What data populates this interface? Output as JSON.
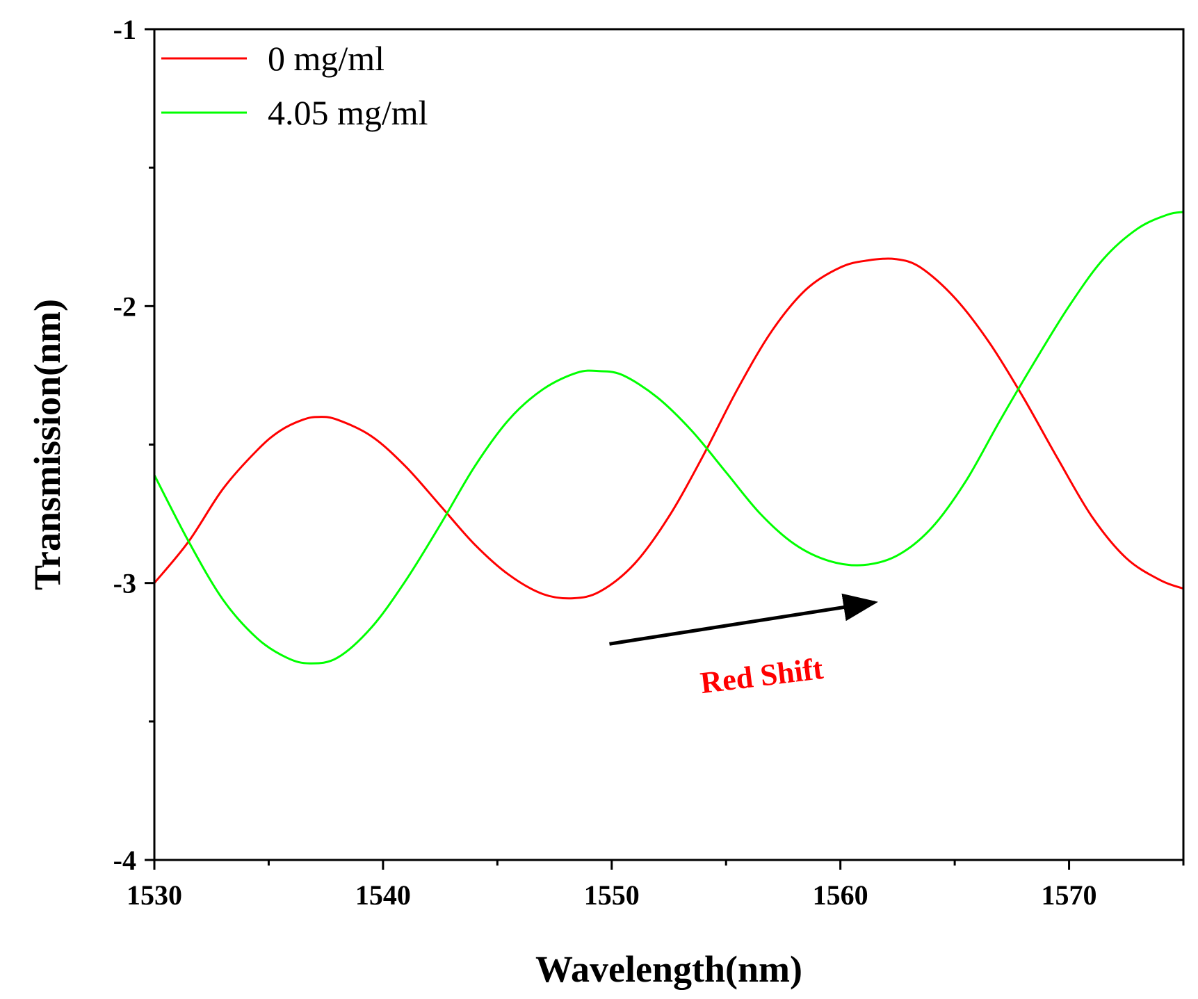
{
  "chart_data": {
    "type": "line",
    "title": "",
    "xlabel": "Wavelength(nm)",
    "ylabel": "Transmission(nm)",
    "xlim": [
      1530,
      1575
    ],
    "ylim": [
      -4,
      -1
    ],
    "x_ticks": [
      1530,
      1540,
      1550,
      1560,
      1570
    ],
    "x_tick_labels": [
      "1530",
      "1540",
      "1550",
      "1560",
      "1570"
    ],
    "x_minor_step": 5,
    "y_ticks": [
      -4,
      -3,
      -2,
      -1
    ],
    "y_tick_labels": [
      "-4",
      "-3",
      "-2",
      "-1"
    ],
    "y_minor_step": 0.5,
    "grid": false,
    "legend_position": "top-left",
    "series": [
      {
        "name": "0 mg/ml",
        "color": "#ff0000",
        "x": [
          1530,
          1531.5,
          1533,
          1534.5,
          1535.5,
          1536.5,
          1537.2,
          1538,
          1539.5,
          1541,
          1542.5,
          1544,
          1545.5,
          1547,
          1548.3,
          1549.5,
          1551,
          1552.5,
          1554,
          1555.5,
          1557,
          1558.5,
          1560,
          1561.2,
          1562.4,
          1563.5,
          1565,
          1566.5,
          1568,
          1569.5,
          1571,
          1572.5,
          1574,
          1575
        ],
        "y": [
          -3.0,
          -2.85,
          -2.66,
          -2.52,
          -2.45,
          -2.41,
          -2.4,
          -2.41,
          -2.47,
          -2.58,
          -2.72,
          -2.86,
          -2.97,
          -3.04,
          -3.055,
          -3.03,
          -2.93,
          -2.76,
          -2.54,
          -2.3,
          -2.09,
          -1.94,
          -1.86,
          -1.835,
          -1.83,
          -1.86,
          -1.97,
          -2.13,
          -2.33,
          -2.55,
          -2.76,
          -2.91,
          -2.99,
          -3.02
        ]
      },
      {
        "name": "4.05 mg/ml",
        "color": "#00ff00",
        "x": [
          1530,
          1531.5,
          1533,
          1534.5,
          1535.8,
          1536.8,
          1538,
          1539.5,
          1541,
          1542.5,
          1544,
          1545.5,
          1547,
          1548.5,
          1549.5,
          1550.5,
          1552,
          1553.5,
          1555,
          1556.5,
          1558,
          1559.5,
          1561,
          1562.5,
          1564,
          1565.5,
          1567,
          1568.5,
          1570,
          1571.5,
          1573,
          1574.3,
          1575
        ],
        "y": [
          -2.61,
          -2.85,
          -3.06,
          -3.2,
          -3.27,
          -3.29,
          -3.27,
          -3.16,
          -2.99,
          -2.79,
          -2.58,
          -2.41,
          -2.3,
          -2.24,
          -2.235,
          -2.25,
          -2.33,
          -2.45,
          -2.6,
          -2.75,
          -2.86,
          -2.92,
          -2.935,
          -2.9,
          -2.8,
          -2.63,
          -2.41,
          -2.2,
          -2.0,
          -1.83,
          -1.72,
          -1.67,
          -1.66
        ]
      }
    ],
    "annotations": [
      {
        "text": "Red Shift",
        "color": "#ff0000",
        "type": "arrow",
        "from": [
          1549.9,
          -3.22
        ],
        "to": [
          1561.5,
          -3.07
        ]
      }
    ]
  }
}
